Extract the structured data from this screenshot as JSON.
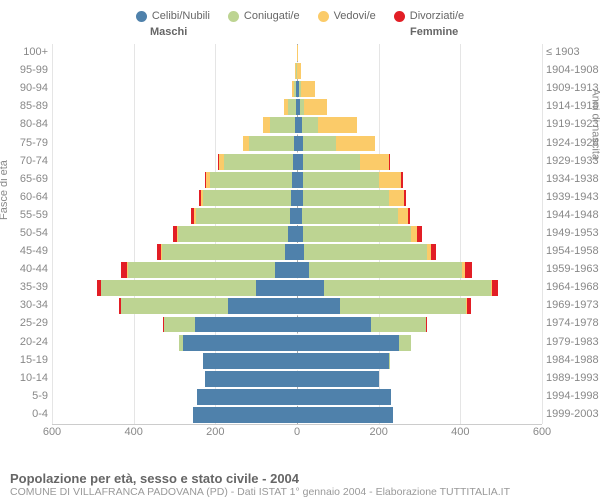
{
  "chart": {
    "type": "population-pyramid",
    "legend": [
      {
        "label": "Celibi/Nubili",
        "color": "#4f81ab"
      },
      {
        "label": "Coniugati/e",
        "color": "#bdd492"
      },
      {
        "label": "Vedovi/e",
        "color": "#fbcb69"
      },
      {
        "label": "Divorziati/e",
        "color": "#e21e25"
      }
    ],
    "columns": {
      "left": "Maschi",
      "right": "Femmine"
    },
    "y_left_title": "Fasce di età",
    "y_right_title": "Anni di nascita",
    "xaxis": {
      "max": 600,
      "ticks": [
        600,
        400,
        200,
        0,
        200,
        400,
        600
      ]
    },
    "bar_gap": 0.12,
    "colors": {
      "single": "#4f81ab",
      "married": "#bdd492",
      "widowed": "#fbcb69",
      "divorced": "#e21e25",
      "grid": "#e5e5e5",
      "axis": "#cccccc",
      "bg": "#ffffff"
    },
    "rows": [
      {
        "age": "100+",
        "birth": "≤ 1903",
        "m": {
          "single": 0,
          "married": 0,
          "widowed": 0,
          "divorced": 0
        },
        "f": {
          "single": 0,
          "married": 0,
          "widowed": 3,
          "divorced": 0
        }
      },
      {
        "age": "95-99",
        "birth": "1904-1908",
        "m": {
          "single": 0,
          "married": 2,
          "widowed": 2,
          "divorced": 0
        },
        "f": {
          "single": 1,
          "married": 0,
          "widowed": 8,
          "divorced": 0
        }
      },
      {
        "age": "90-94",
        "birth": "1909-1913",
        "m": {
          "single": 2,
          "married": 6,
          "widowed": 5,
          "divorced": 0
        },
        "f": {
          "single": 6,
          "married": 3,
          "widowed": 35,
          "divorced": 0
        }
      },
      {
        "age": "85-89",
        "birth": "1914-1918",
        "m": {
          "single": 3,
          "married": 20,
          "widowed": 10,
          "divorced": 0
        },
        "f": {
          "single": 8,
          "married": 10,
          "widowed": 55,
          "divorced": 0
        }
      },
      {
        "age": "80-84",
        "birth": "1919-1923",
        "m": {
          "single": 6,
          "married": 60,
          "widowed": 18,
          "divorced": 0
        },
        "f": {
          "single": 12,
          "married": 40,
          "widowed": 95,
          "divorced": 0
        }
      },
      {
        "age": "75-79",
        "birth": "1924-1928",
        "m": {
          "single": 8,
          "married": 110,
          "widowed": 15,
          "divorced": 0
        },
        "f": {
          "single": 15,
          "married": 80,
          "widowed": 95,
          "divorced": 0
        }
      },
      {
        "age": "70-74",
        "birth": "1929-1933",
        "m": {
          "single": 10,
          "married": 170,
          "widowed": 12,
          "divorced": 2
        },
        "f": {
          "single": 15,
          "married": 140,
          "widowed": 70,
          "divorced": 2
        }
      },
      {
        "age": "65-69",
        "birth": "1934-1938",
        "m": {
          "single": 12,
          "married": 200,
          "widowed": 10,
          "divorced": 3
        },
        "f": {
          "single": 15,
          "married": 185,
          "widowed": 55,
          "divorced": 4
        }
      },
      {
        "age": "60-64",
        "birth": "1939-1943",
        "m": {
          "single": 15,
          "married": 215,
          "widowed": 6,
          "divorced": 5
        },
        "f": {
          "single": 15,
          "married": 210,
          "widowed": 38,
          "divorced": 4
        }
      },
      {
        "age": "55-59",
        "birth": "1944-1948",
        "m": {
          "single": 18,
          "married": 230,
          "widowed": 5,
          "divorced": 6
        },
        "f": {
          "single": 12,
          "married": 235,
          "widowed": 25,
          "divorced": 6
        }
      },
      {
        "age": "50-54",
        "birth": "1949-1953",
        "m": {
          "single": 22,
          "married": 270,
          "widowed": 3,
          "divorced": 8
        },
        "f": {
          "single": 15,
          "married": 265,
          "widowed": 15,
          "divorced": 10
        }
      },
      {
        "age": "45-49",
        "birth": "1954-1958",
        "m": {
          "single": 30,
          "married": 300,
          "widowed": 2,
          "divorced": 10
        },
        "f": {
          "single": 18,
          "married": 300,
          "widowed": 10,
          "divorced": 12
        }
      },
      {
        "age": "40-44",
        "birth": "1959-1963",
        "m": {
          "single": 55,
          "married": 360,
          "widowed": 2,
          "divorced": 14
        },
        "f": {
          "single": 30,
          "married": 375,
          "widowed": 6,
          "divorced": 18
        }
      },
      {
        "age": "35-39",
        "birth": "1964-1968",
        "m": {
          "single": 100,
          "married": 380,
          "widowed": 1,
          "divorced": 10
        },
        "f": {
          "single": 65,
          "married": 410,
          "widowed": 3,
          "divorced": 14
        }
      },
      {
        "age": "30-34",
        "birth": "1969-1973",
        "m": {
          "single": 170,
          "married": 260,
          "widowed": 0,
          "divorced": 6
        },
        "f": {
          "single": 105,
          "married": 310,
          "widowed": 2,
          "divorced": 8
        }
      },
      {
        "age": "25-29",
        "birth": "1974-1978",
        "m": {
          "single": 250,
          "married": 75,
          "widowed": 0,
          "divorced": 2
        },
        "f": {
          "single": 180,
          "married": 135,
          "widowed": 0,
          "divorced": 4
        }
      },
      {
        "age": "20-24",
        "birth": "1979-1983",
        "m": {
          "single": 280,
          "married": 8,
          "widowed": 0,
          "divorced": 0
        },
        "f": {
          "single": 250,
          "married": 30,
          "widowed": 0,
          "divorced": 0
        }
      },
      {
        "age": "15-19",
        "birth": "1984-1988",
        "m": {
          "single": 230,
          "married": 0,
          "widowed": 0,
          "divorced": 0
        },
        "f": {
          "single": 225,
          "married": 2,
          "widowed": 0,
          "divorced": 0
        }
      },
      {
        "age": "10-14",
        "birth": "1989-1993",
        "m": {
          "single": 225,
          "married": 0,
          "widowed": 0,
          "divorced": 0
        },
        "f": {
          "single": 200,
          "married": 0,
          "widowed": 0,
          "divorced": 0
        }
      },
      {
        "age": "5-9",
        "birth": "1994-1998",
        "m": {
          "single": 245,
          "married": 0,
          "widowed": 0,
          "divorced": 0
        },
        "f": {
          "single": 230,
          "married": 0,
          "widowed": 0,
          "divorced": 0
        }
      },
      {
        "age": "0-4",
        "birth": "1999-2003",
        "m": {
          "single": 255,
          "married": 0,
          "widowed": 0,
          "divorced": 0
        },
        "f": {
          "single": 235,
          "married": 0,
          "widowed": 0,
          "divorced": 0
        }
      }
    ],
    "title": "Popolazione per età, sesso e stato civile - 2004",
    "subtitle": "COMUNE DI VILLAFRANCA PADOVANA (PD) - Dati ISTAT 1° gennaio 2004 - Elaborazione TUTTITALIA.IT"
  }
}
